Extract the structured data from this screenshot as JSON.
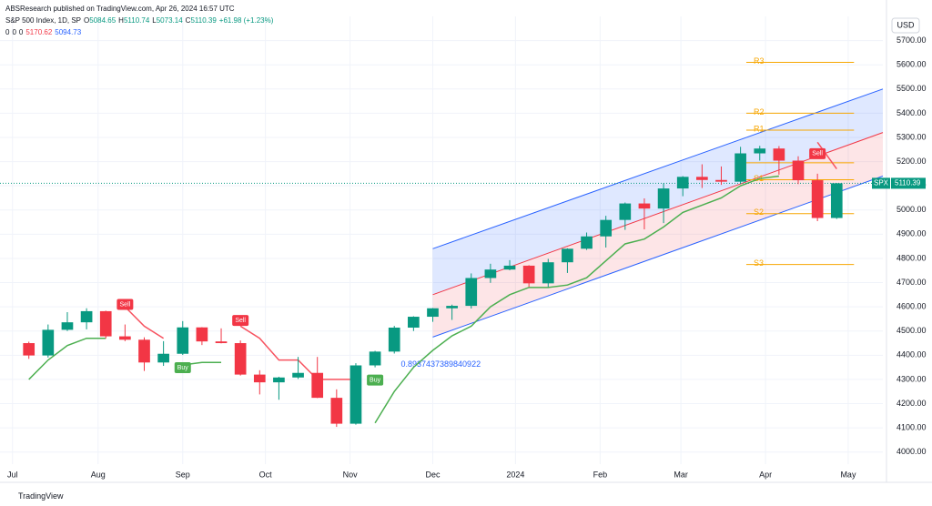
{
  "page": {
    "publisher": "ABSResearch published on TradingView.com, Apr 26, 2024 16:57 UTC",
    "brand": "TradingView"
  },
  "chart_data": {
    "type": "candlestick",
    "title": "S&P 500 Index, 1D, SP",
    "ohlc_legend": [
      {
        "label": "O",
        "value": 5084.65
      },
      {
        "label": "H",
        "value": 5110.74
      },
      {
        "label": "L",
        "value": 5073.14
      },
      {
        "label": "C",
        "value": 5110.39
      }
    ],
    "change": "+61.98 (+1.23%)",
    "indicator_values": [
      {
        "value": 0,
        "color": "#131722"
      },
      {
        "value": 0,
        "color": "#131722"
      },
      {
        "value": 0,
        "color": "#131722"
      },
      {
        "value": 5170.62,
        "color": "#f23645"
      },
      {
        "value": 5094.73,
        "color": "#2962ff"
      }
    ],
    "currency": "USD",
    "symbol": "SPX",
    "up_color": "#089981",
    "down_color": "#f23645",
    "candles": {
      "open": [
        4450,
        4399,
        4505,
        4536,
        4582,
        4478,
        4464,
        4370,
        4406,
        4515,
        4457,
        4450,
        4320,
        4288,
        4308,
        4327,
        4224,
        4117,
        4358,
        4415,
        4514,
        4559,
        4594,
        4604,
        4719,
        4754,
        4770,
        4697,
        4784,
        4840,
        4891,
        4959,
        5027,
        5006,
        5089,
        5137,
        5124,
        5117,
        5234,
        5254,
        5204,
        5123,
        4967
      ],
      "high": [
        4456,
        4527,
        4578,
        4594,
        4584,
        4527,
        4474,
        4458,
        4541,
        4516,
        4511,
        4461,
        4338,
        4311,
        4393,
        4393,
        4259,
        4367,
        4418,
        4521,
        4561,
        4595,
        4609,
        4738,
        4778,
        4793,
        4772,
        4798,
        4842,
        4907,
        4976,
        5031,
        5048,
        5111,
        5140,
        5189,
        5180,
        5261,
        5265,
        5264,
        5222,
        5150,
        5111
      ],
      "low": [
        4385,
        4390,
        4500,
        4507,
        4469,
        4458,
        4335,
        4356,
        4401,
        4442,
        4449,
        4316,
        4238,
        4216,
        4302,
        4223,
        4104,
        4113,
        4350,
        4407,
        4500,
        4538,
        4546,
        4593,
        4699,
        4751,
        4682,
        4682,
        4740,
        4835,
        4845,
        4918,
        4920,
        4946,
        5057,
        5091,
        5104,
        5108,
        5204,
        5146,
        5107,
        4954,
        4963
      ],
      "close": [
        4399,
        4505,
        4536,
        4582,
        4478,
        4464,
        4370,
        4406,
        4515,
        4457,
        4450,
        4320,
        4288,
        4308,
        4327,
        4224,
        4117,
        4358,
        4415,
        4514,
        4559,
        4594,
        4604,
        4719,
        4754,
        4770,
        4697,
        4784,
        4840,
        4891,
        4959,
        5027,
        5006,
        5089,
        5137,
        5124,
        5117,
        5234,
        5254,
        5204,
        5123,
        4967,
        5110.39
      ]
    },
    "trend_up": {
      "color": "#4caf50",
      "values": [
        4300,
        4380,
        4440,
        4470,
        4470,
        null,
        null,
        null,
        4360,
        4370,
        4370,
        null,
        null,
        null,
        null,
        null,
        null,
        null,
        4120,
        4250,
        4350,
        4420,
        4480,
        4520,
        4600,
        4650,
        4680,
        4680,
        4690,
        4720,
        4790,
        4860,
        4880,
        4930,
        4990,
        5020,
        5050,
        5100,
        5130,
        5140,
        null,
        null,
        null
      ]
    },
    "trend_down": {
      "color": "#f7525f",
      "values": [
        null,
        null,
        null,
        null,
        null,
        4600,
        4520,
        4470,
        null,
        null,
        null,
        4520,
        4470,
        4380,
        4380,
        4300,
        4300,
        4300,
        null,
        null,
        null,
        null,
        null,
        null,
        null,
        null,
        null,
        null,
        null,
        null,
        null,
        null,
        null,
        null,
        null,
        null,
        null,
        null,
        null,
        null,
        null,
        5280,
        5170
      ]
    },
    "signals": [
      {
        "text": "Sell",
        "index": 5,
        "color": "#f23645"
      },
      {
        "text": "Buy",
        "index": 8,
        "color": "#4caf50"
      },
      {
        "text": "Sell",
        "index": 11,
        "color": "#f23645"
      },
      {
        "text": "Buy",
        "index": 18,
        "color": "#4caf50"
      },
      {
        "text": "Sell",
        "index": 41,
        "color": "#f23645"
      }
    ],
    "channel": {
      "x": [
        21,
        44.4
      ],
      "upper": [
        4840,
        5500
      ],
      "mid": [
        4650,
        5320
      ],
      "lower": [
        4475,
        5140
      ],
      "pearson": "0.8937437389840922"
    },
    "pivots": {
      "x": [
        37.3,
        42.9
      ],
      "color": "#f7a600",
      "levels": [
        {
          "label": "R3",
          "value": 5610
        },
        {
          "label": "R2",
          "value": 5400
        },
        {
          "label": "R1",
          "value": 5330
        },
        {
          "label": null,
          "value": 5195
        },
        {
          "label": "S1",
          "value": 5125
        },
        {
          "label": "S2",
          "value": 4985
        },
        {
          "label": "S3",
          "value": 4775
        }
      ]
    },
    "xlim": [
      -1.5,
      44.4
    ],
    "xticks": [
      {
        "value": -0.85,
        "label": "Jul"
      },
      {
        "value": 3.6,
        "label": "Aug"
      },
      {
        "value": 8.0,
        "label": "Sep"
      },
      {
        "value": 12.3,
        "label": "Oct"
      },
      {
        "value": 16.7,
        "label": "Nov"
      },
      {
        "value": 21.0,
        "label": "Dec"
      },
      {
        "value": 25.3,
        "label": "2024"
      },
      {
        "value": 29.7,
        "label": "Feb"
      },
      {
        "value": 33.9,
        "label": "Mar"
      },
      {
        "value": 38.3,
        "label": "Apr"
      },
      {
        "value": 42.6,
        "label": "May"
      }
    ],
    "ylim": [
      3950,
      5800
    ],
    "yticks": [
      {
        "value": 4000,
        "label": "4000.00"
      },
      {
        "value": 4100,
        "label": "4100.00"
      },
      {
        "value": 4200,
        "label": "4200.00"
      },
      {
        "value": 4300,
        "label": "4300.00"
      },
      {
        "value": 4400,
        "label": "4400.00"
      },
      {
        "value": 4500,
        "label": "4500.00"
      },
      {
        "value": 4600,
        "label": "4600.00"
      },
      {
        "value": 4700,
        "label": "4700.00"
      },
      {
        "value": 4800,
        "label": "4800.00"
      },
      {
        "value": 4900,
        "label": "4900.00"
      },
      {
        "value": 5000,
        "label": "5000.00"
      },
      {
        "value": 5100,
        "label": "5100.00"
      },
      {
        "value": 5200,
        "label": "5200.00"
      },
      {
        "value": 5300,
        "label": "5300.00"
      },
      {
        "value": 5400,
        "label": "5400.00"
      },
      {
        "value": 5500,
        "label": "5500.00"
      },
      {
        "value": 5600,
        "label": "5600.00"
      },
      {
        "value": 5700,
        "label": "5700.00"
      }
    ],
    "grid": true
  }
}
